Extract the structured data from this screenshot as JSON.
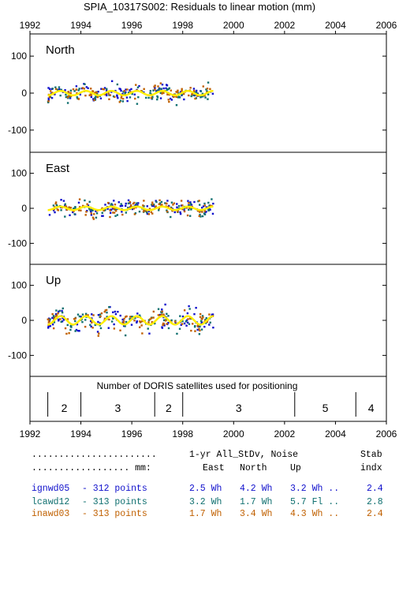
{
  "title": "SPIA_10317S002: Residuals to linear motion (mm)",
  "chart_data": {
    "type": "scatter",
    "x_ticks": [
      "1992",
      "1994",
      "1996",
      "1998",
      "2000",
      "2002",
      "2004",
      "2006"
    ],
    "xlim": [
      1992,
      2006
    ],
    "panels": [
      {
        "name": "North",
        "ylim": [
          -160,
          160
        ],
        "yticks": [
          "100",
          "0",
          "-100"
        ],
        "data_span": [
          1992.7,
          1999.2
        ],
        "smooth_amplitude": 6
      },
      {
        "name": "East",
        "ylim": [
          -160,
          160
        ],
        "yticks": [
          "100",
          "0",
          "-100"
        ],
        "data_span": [
          1992.7,
          1999.2
        ],
        "smooth_amplitude": 5
      },
      {
        "name": "Up",
        "ylim": [
          -160,
          160
        ],
        "yticks": [
          "100",
          "0",
          "-100"
        ],
        "data_span": [
          1992.7,
          1999.2
        ],
        "smooth_amplitude": 12
      }
    ],
    "series": [
      {
        "name": "ignwd05",
        "color": "#1010cc"
      },
      {
        "name": "lcawd12",
        "color": "#107070"
      },
      {
        "name": "inawd03",
        "color": "#c06000"
      }
    ],
    "smooth_color": "#ffee00",
    "doris": {
      "title": "Number of DORIS satellites used for positioning",
      "boundaries": [
        1992.7,
        1994.0,
        1996.9,
        1998.0,
        2002.4,
        2004.8
      ],
      "segments": [
        {
          "label": "2",
          "from": 1992.7,
          "to": 1994.0
        },
        {
          "label": "3",
          "from": 1994.0,
          "to": 1996.9
        },
        {
          "label": "2",
          "from": 1996.9,
          "to": 1998.0
        },
        {
          "label": "3",
          "from": 1998.0,
          "to": 2002.4
        },
        {
          "label": "5",
          "from": 2002.4,
          "to": 2004.8
        },
        {
          "label": "4",
          "from": 2004.8,
          "to": 2006.0
        }
      ]
    }
  },
  "stats": {
    "header1": {
      "dots": ".......................",
      "label": "1-yr All_StDv, Noise",
      "stab": "Stab"
    },
    "header2": {
      "dots": ".................. mm:",
      "east": "East",
      "north": "North",
      "up": "Up",
      "indx": "indx"
    },
    "rows": [
      {
        "name": "ignwd05",
        "points": "- 312 points",
        "east": "2.5 Wh",
        "north": "4.2 Wh",
        "up": "3.2 Wh ..",
        "indx": "2.4",
        "color": "#1010cc"
      },
      {
        "name": "lcawd12",
        "points": "- 313 points",
        "east": "3.2 Wh",
        "north": "1.7 Wh",
        "up": "5.7 Fl ..",
        "indx": "2.8",
        "color": "#107070"
      },
      {
        "name": "inawd03",
        "points": "- 313 points",
        "east": "1.7 Wh",
        "north": "3.4 Wh",
        "up": "4.3 Wh ..",
        "indx": "2.4",
        "color": "#c06000"
      }
    ]
  }
}
